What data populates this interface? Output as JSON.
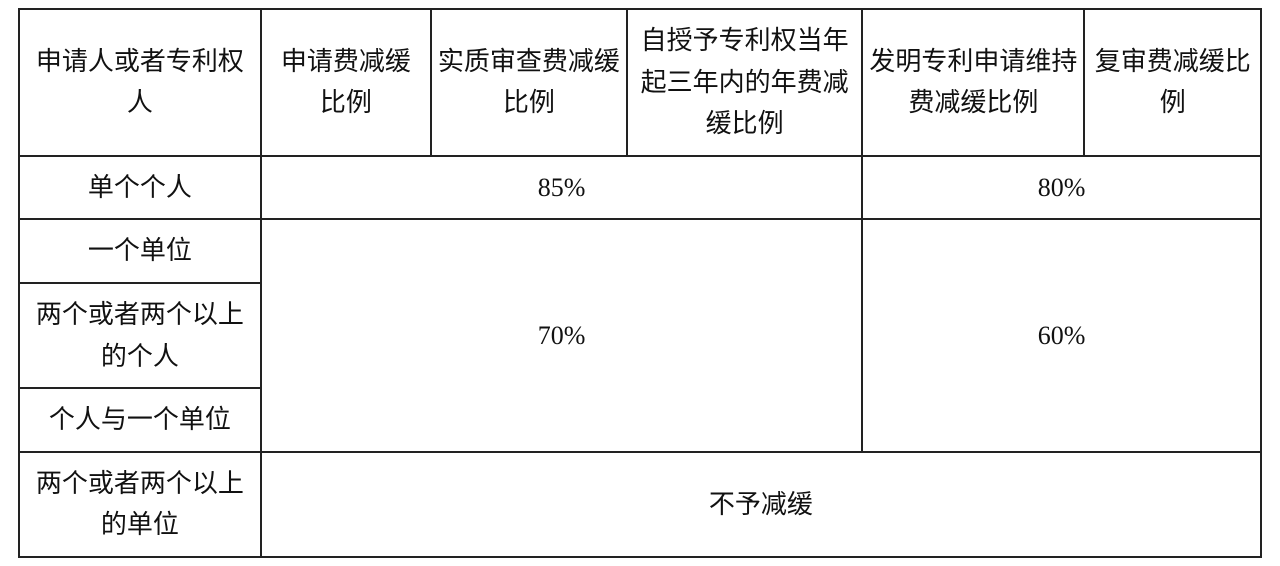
{
  "table": {
    "type": "table",
    "background_color": "#ffffff",
    "border_color": "#222222",
    "text_color": "#111111",
    "font_size_pt": 20,
    "columns": [
      {
        "label": "申请人或者专利权人",
        "width_pct": 18.5,
        "align": "center"
      },
      {
        "label": "申请费减缓比例",
        "width_pct": 13,
        "align": "center"
      },
      {
        "label": "实质审查费减缓比例",
        "width_pct": 15,
        "align": "center"
      },
      {
        "label": "自授予专利权当年起三年内的年费减缓比例",
        "width_pct": 18,
        "align": "center"
      },
      {
        "label": "发明专利申请维持费减缓比例",
        "width_pct": 17,
        "align": "center"
      },
      {
        "label": "复审费减缓比例",
        "width_pct": 13.5,
        "align": "center"
      }
    ],
    "rows": [
      {
        "label": "单个个人",
        "group_a": "85%",
        "group_b": "80%"
      },
      {
        "label": "一个单位",
        "group_a": "70%",
        "group_b": "60%"
      },
      {
        "label": "两个或者两个以上的个人",
        "group_a": "70%",
        "group_b": "60%"
      },
      {
        "label": "个人与一个单位",
        "group_a": "70%",
        "group_b": "60%"
      },
      {
        "label": "两个或者两个以上的单位",
        "full": "不予减缓"
      }
    ],
    "cells": {
      "r1_85": "85%",
      "r1_80": "80%",
      "r234_70": "70%",
      "r234_60": "60%",
      "r5_full": "不予减缓"
    }
  }
}
